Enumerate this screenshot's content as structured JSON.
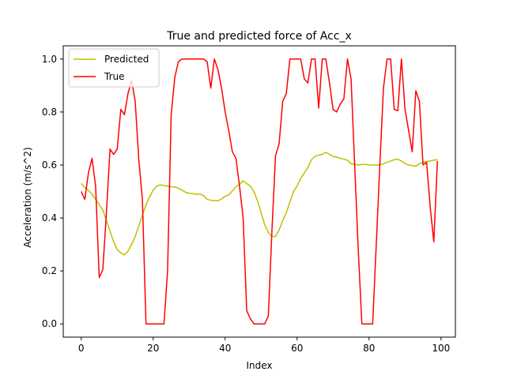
{
  "chart_data": {
    "type": "line",
    "title": "True and predicted force of Acc_x",
    "xlabel": "Index",
    "ylabel": "Acceleration (m/s^2)",
    "xlim": [
      -5,
      104
    ],
    "ylim": [
      -0.05,
      1.05
    ],
    "xticks": [
      0,
      20,
      40,
      60,
      80,
      100
    ],
    "yticks": [
      0.0,
      0.2,
      0.4,
      0.6,
      0.8,
      1.0
    ],
    "xtick_labels": [
      "0",
      "20",
      "40",
      "60",
      "80",
      "100"
    ],
    "ytick_labels": [
      "0.0",
      "0.2",
      "0.4",
      "0.6",
      "0.8",
      "1.0"
    ],
    "grid": false,
    "legend_position": "top-left",
    "x": [
      0,
      1,
      2,
      3,
      4,
      5,
      6,
      7,
      8,
      9,
      10,
      11,
      12,
      13,
      14,
      15,
      16,
      17,
      18,
      19,
      20,
      21,
      22,
      23,
      24,
      25,
      26,
      27,
      28,
      29,
      30,
      31,
      32,
      33,
      34,
      35,
      36,
      37,
      38,
      39,
      40,
      41,
      42,
      43,
      44,
      45,
      46,
      47,
      48,
      49,
      50,
      51,
      52,
      53,
      54,
      55,
      56,
      57,
      58,
      59,
      60,
      61,
      62,
      63,
      64,
      65,
      66,
      67,
      68,
      69,
      70,
      71,
      72,
      73,
      74,
      75,
      76,
      77,
      78,
      79,
      80,
      81,
      82,
      83,
      84,
      85,
      86,
      87,
      88,
      89,
      90,
      91,
      92,
      93,
      94,
      95,
      96,
      97,
      98,
      99
    ],
    "series": [
      {
        "name": "Predicted",
        "color": "#bfbf00",
        "values": [
          0.53,
          0.515,
          0.505,
          0.49,
          0.47,
          0.45,
          0.43,
          0.39,
          0.35,
          0.31,
          0.28,
          0.268,
          0.26,
          0.275,
          0.3,
          0.33,
          0.37,
          0.41,
          0.45,
          0.48,
          0.505,
          0.52,
          0.525,
          0.522,
          0.52,
          0.518,
          0.517,
          0.512,
          0.505,
          0.497,
          0.493,
          0.492,
          0.49,
          0.49,
          0.485,
          0.47,
          0.467,
          0.465,
          0.465,
          0.472,
          0.482,
          0.487,
          0.502,
          0.518,
          0.527,
          0.54,
          0.53,
          0.52,
          0.5,
          0.465,
          0.42,
          0.375,
          0.345,
          0.33,
          0.33,
          0.355,
          0.39,
          0.42,
          0.46,
          0.5,
          0.52,
          0.55,
          0.57,
          0.59,
          0.62,
          0.633,
          0.637,
          0.64,
          0.648,
          0.64,
          0.632,
          0.63,
          0.625,
          0.622,
          0.618,
          0.605,
          0.602,
          0.6,
          0.602,
          0.602,
          0.6,
          0.6,
          0.6,
          0.6,
          0.605,
          0.61,
          0.615,
          0.62,
          0.622,
          0.615,
          0.605,
          0.6,
          0.598,
          0.595,
          0.605,
          0.61,
          0.613,
          0.615,
          0.618,
          0.62
        ]
      },
      {
        "name": "True",
        "color": "#ff0000",
        "values": [
          0.5,
          0.47,
          0.57,
          0.625,
          0.52,
          0.175,
          0.205,
          0.42,
          0.66,
          0.64,
          0.66,
          0.81,
          0.79,
          0.87,
          0.92,
          0.84,
          0.62,
          0.47,
          0.0,
          0.0,
          0.0,
          0.0,
          0.0,
          0.0,
          0.2,
          0.79,
          0.93,
          0.99,
          1.0,
          1.0,
          1.0,
          1.0,
          1.0,
          1.0,
          1.0,
          0.99,
          0.89,
          1.0,
          0.96,
          0.89,
          0.8,
          0.73,
          0.65,
          0.625,
          0.52,
          0.4,
          0.05,
          0.02,
          0.0,
          0.0,
          0.0,
          0.0,
          0.03,
          0.35,
          0.635,
          0.68,
          0.84,
          0.87,
          1.0,
          1.0,
          1.0,
          1.0,
          0.925,
          0.91,
          1.0,
          1.0,
          0.815,
          1.0,
          1.0,
          0.91,
          0.81,
          0.8,
          0.83,
          0.85,
          1.0,
          0.925,
          0.6,
          0.28,
          0.0,
          0.0,
          0.0,
          0.0,
          0.3,
          0.6,
          0.89,
          1.0,
          1.0,
          0.81,
          0.805,
          1.0,
          0.81,
          0.73,
          0.65,
          0.88,
          0.84,
          0.6,
          0.61,
          0.44,
          0.31,
          0.615
        ]
      }
    ]
  }
}
